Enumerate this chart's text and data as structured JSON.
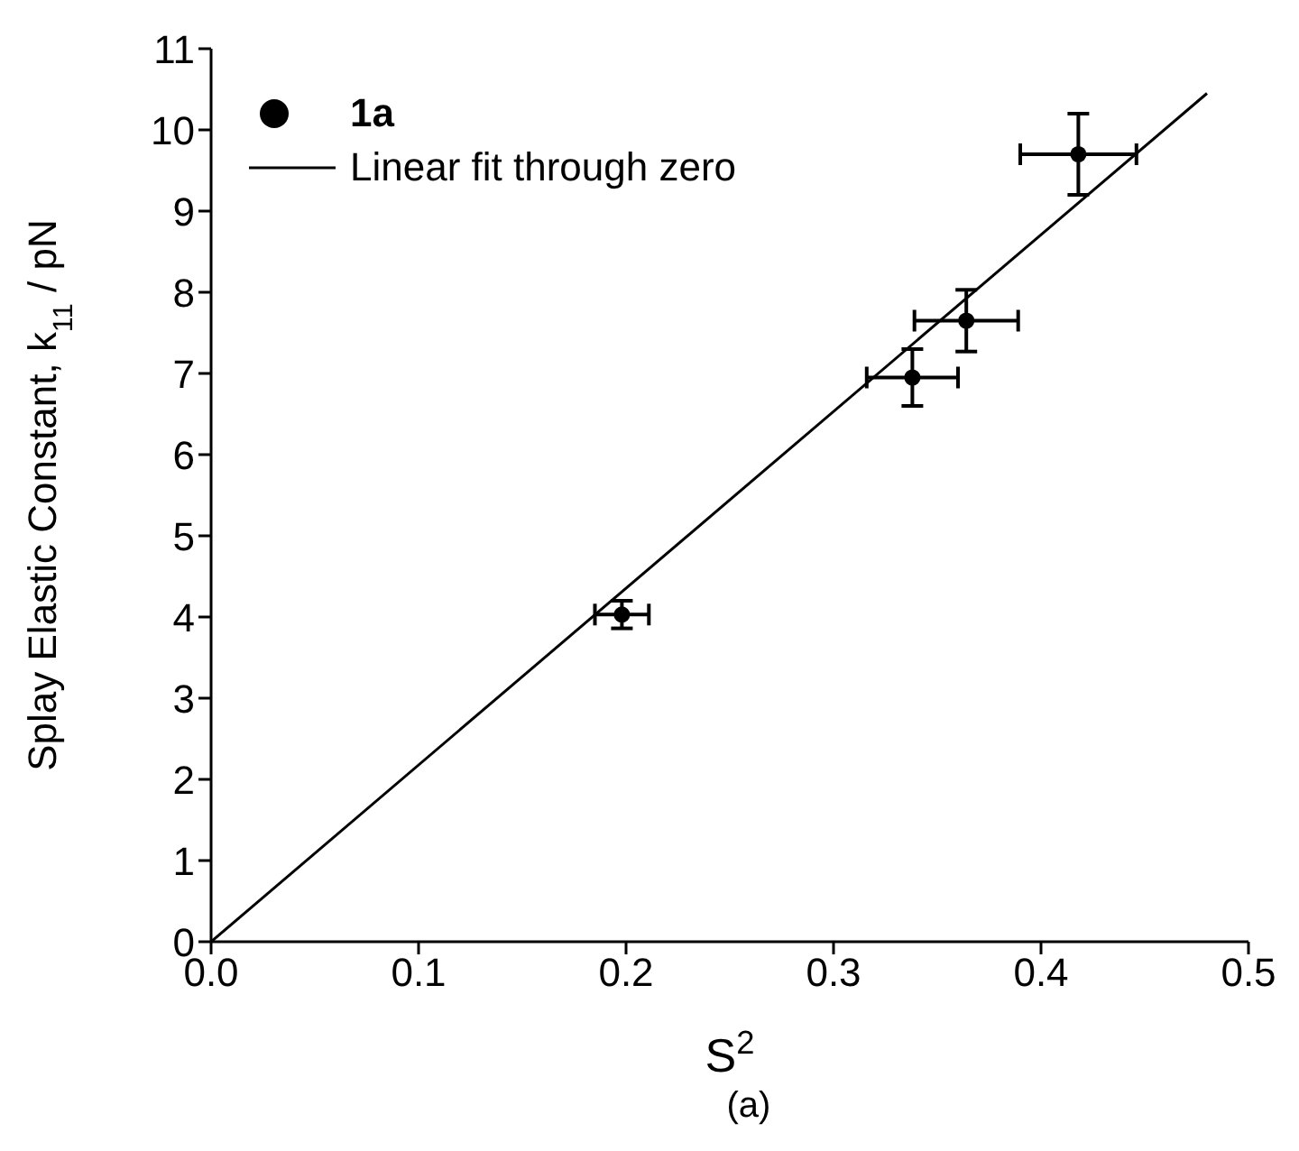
{
  "chart_data": {
    "type": "scatter",
    "xlabel": "S$^{2}$",
    "ylabel": "Splay Elastic Constant, k$_{11}$ / pN",
    "annotations": [
      "(a)"
    ],
    "xlim": [
      0,
      0.5
    ],
    "xticks": [
      {
        "value": 0,
        "label": "0.0"
      },
      0.1,
      0.2,
      0.3,
      0.4,
      0.5
    ],
    "ylim": [
      0,
      11
    ],
    "yticks": [
      0,
      1,
      2,
      3,
      4,
      5,
      6,
      7,
      8,
      9,
      10,
      11
    ],
    "grid": false,
    "legend": "top left",
    "series": [
      {
        "name": "1a",
        "marker": "circle",
        "color": "#000000",
        "x": [
          0.198,
          0.338,
          0.364,
          0.418
        ],
        "values": [
          4.03,
          6.95,
          7.65,
          9.7
        ],
        "errors": [
          0.17,
          0.35,
          0.38,
          0.5
        ],
        "xerrors": [
          0.013,
          0.022,
          0.025,
          0.028
        ]
      },
      {
        "name": "Linear fit through zero",
        "type": "line",
        "color": "#000000",
        "line_style": "solid",
        "x": [
          0,
          0.48
        ],
        "values": [
          0,
          10.45
        ]
      }
    ]
  }
}
